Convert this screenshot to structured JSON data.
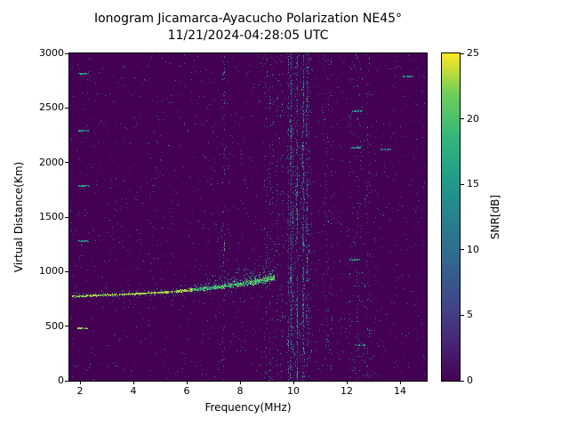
{
  "chart_data": {
    "type": "heatmap",
    "title": "Ionogram Jicamarca-Ayacucho Polarization NE45°",
    "subtitle": "11/21/2024-04:28:05 UTC",
    "xlabel": "Frequency(MHz)",
    "ylabel": "Virtual Distance(Km)",
    "xlim": [
      1.6,
      15.0
    ],
    "ylim": [
      0,
      3000
    ],
    "xticks": [
      2,
      4,
      6,
      8,
      10,
      12,
      14
    ],
    "yticks": [
      0,
      500,
      1000,
      1500,
      2000,
      2500,
      3000
    ],
    "grid": false,
    "colorbar": {
      "label": "SNR[dB]",
      "ticks": [
        0,
        5,
        10,
        15,
        20,
        25
      ],
      "range": [
        0,
        25
      ],
      "colormap": "viridis"
    },
    "background_snr_db": 0,
    "noise_speckle_db_range": [
      2,
      15
    ],
    "echo_trace": {
      "description": "Main ionospheric echo trace, bright yellow near 25 dB at low frequency, becoming diffuse green spread echo above 6.5 MHz, ending near 9.3 MHz",
      "points_mhz_km": [
        [
          1.7,
          772
        ],
        [
          2.5,
          780
        ],
        [
          3.5,
          790
        ],
        [
          4.5,
          800
        ],
        [
          5.5,
          815
        ],
        [
          6.5,
          840
        ],
        [
          7.5,
          868
        ],
        [
          8.3,
          895
        ],
        [
          9.0,
          925
        ],
        [
          9.3,
          950
        ]
      ],
      "peak_snr_db": 25,
      "spread_above_km_max": 200
    },
    "interference_bands": [
      {
        "mhz": [
          9.7,
          10.7
        ],
        "strength": 0.5
      },
      {
        "mhz": [
          8.9,
          9.6
        ],
        "strength": 0.06
      },
      {
        "mhz": [
          7.25,
          7.45
        ],
        "strength": 0.1
      },
      {
        "mhz": [
          11.15,
          11.45
        ],
        "strength": 0.05
      },
      {
        "mhz": [
          12.1,
          12.85
        ],
        "strength": 0.05
      }
    ],
    "sporadic_echoes_mhz_km_db": [
      [
        2.15,
        2820,
        16
      ],
      [
        2.15,
        2300,
        15
      ],
      [
        2.15,
        1790,
        15
      ],
      [
        2.15,
        1290,
        15
      ],
      [
        2.1,
        490,
        22
      ],
      [
        12.4,
        2480,
        14
      ],
      [
        12.35,
        2140,
        16
      ],
      [
        12.3,
        1120,
        15
      ],
      [
        12.5,
        335,
        15
      ],
      [
        14.3,
        2800,
        14
      ],
      [
        13.45,
        2130,
        13
      ]
    ]
  }
}
